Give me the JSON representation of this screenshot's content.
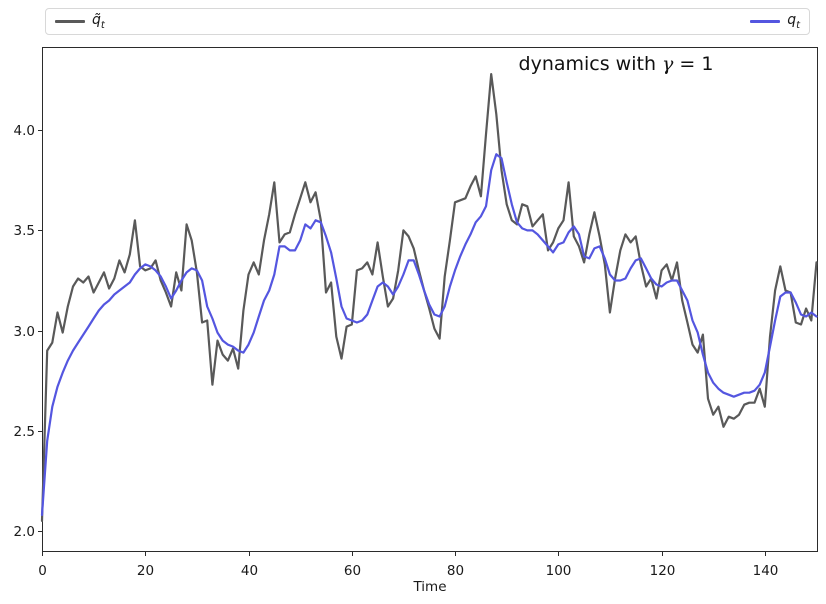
{
  "legend": {
    "entries": [
      {
        "base": "q̃",
        "sub": "t",
        "color": "#595959"
      },
      {
        "base": "q",
        "sub": "t",
        "color": "#5456e0"
      }
    ]
  },
  "annotation": {
    "prefix": "dynamics with ",
    "gamma": "γ",
    "suffix": " = 1"
  },
  "chart_data": {
    "type": "line",
    "title": "",
    "annotation_text": "dynamics with γ = 1",
    "xlabel": "Time",
    "ylabel": "",
    "grid": false,
    "legend_position": "top, expanded, outside axes, two entries",
    "xlim": [
      0,
      150.3
    ],
    "ylim": [
      1.895,
      4.415
    ],
    "x_ticks": [
      0,
      20,
      40,
      60,
      80,
      100,
      120,
      140
    ],
    "x_tick_labels": [
      "0",
      "20",
      "40",
      "60",
      "80",
      "100",
      "120",
      "140"
    ],
    "y_ticks": [
      2.0,
      2.5,
      3.0,
      3.5,
      4.0
    ],
    "y_tick_labels": [
      "2.0",
      "2.5",
      "3.0",
      "3.5",
      "4.0"
    ],
    "x_start": 0,
    "x_step": 1,
    "series": [
      {
        "name": "q̃_t",
        "color": "#595959",
        "linewidth": 2.2,
        "values": [
          2.05,
          2.9,
          2.94,
          3.09,
          2.99,
          3.12,
          3.22,
          3.26,
          3.24,
          3.27,
          3.19,
          3.24,
          3.29,
          3.21,
          3.26,
          3.35,
          3.29,
          3.38,
          3.55,
          3.32,
          3.3,
          3.31,
          3.35,
          3.25,
          3.19,
          3.12,
          3.29,
          3.2,
          3.53,
          3.45,
          3.29,
          3.04,
          3.05,
          2.73,
          2.95,
          2.88,
          2.85,
          2.91,
          2.81,
          3.1,
          3.28,
          3.34,
          3.28,
          3.45,
          3.58,
          3.74,
          3.44,
          3.48,
          3.49,
          3.58,
          3.66,
          3.74,
          3.64,
          3.69,
          3.55,
          3.19,
          3.24,
          2.97,
          2.86,
          3.02,
          3.03,
          3.3,
          3.31,
          3.34,
          3.28,
          3.44,
          3.27,
          3.12,
          3.16,
          3.3,
          3.5,
          3.47,
          3.41,
          3.3,
          3.2,
          3.11,
          3.01,
          2.96,
          3.27,
          3.45,
          3.64,
          3.65,
          3.66,
          3.72,
          3.77,
          3.67,
          3.98,
          4.28,
          4.08,
          3.8,
          3.63,
          3.55,
          3.53,
          3.63,
          3.62,
          3.52,
          3.55,
          3.58,
          3.4,
          3.44,
          3.51,
          3.55,
          3.74,
          3.47,
          3.42,
          3.34,
          3.48,
          3.59,
          3.47,
          3.33,
          3.09,
          3.26,
          3.4,
          3.48,
          3.44,
          3.47,
          3.33,
          3.22,
          3.26,
          3.16,
          3.3,
          3.33,
          3.25,
          3.34,
          3.15,
          3.04,
          2.93,
          2.89,
          2.98,
          2.66,
          2.58,
          2.62,
          2.52,
          2.57,
          2.56,
          2.58,
          2.63,
          2.64,
          2.64,
          2.71,
          2.62,
          2.97,
          3.2,
          3.32,
          3.2,
          3.19,
          3.04,
          3.03,
          3.11,
          3.05,
          3.34
        ]
      },
      {
        "name": "q_t",
        "color": "#5456e0",
        "linewidth": 2.2,
        "values": [
          2.08,
          2.45,
          2.62,
          2.72,
          2.79,
          2.85,
          2.9,
          2.94,
          2.98,
          3.02,
          3.06,
          3.1,
          3.13,
          3.15,
          3.18,
          3.2,
          3.22,
          3.24,
          3.28,
          3.31,
          3.33,
          3.32,
          3.3,
          3.27,
          3.22,
          3.16,
          3.2,
          3.25,
          3.29,
          3.31,
          3.3,
          3.25,
          3.12,
          3.06,
          2.99,
          2.95,
          2.93,
          2.92,
          2.9,
          2.89,
          2.93,
          2.99,
          3.07,
          3.15,
          3.2,
          3.28,
          3.42,
          3.42,
          3.4,
          3.4,
          3.45,
          3.53,
          3.51,
          3.55,
          3.54,
          3.47,
          3.39,
          3.26,
          3.12,
          3.06,
          3.05,
          3.04,
          3.05,
          3.08,
          3.15,
          3.22,
          3.24,
          3.22,
          3.18,
          3.22,
          3.28,
          3.35,
          3.35,
          3.28,
          3.2,
          3.13,
          3.08,
          3.07,
          3.12,
          3.22,
          3.3,
          3.37,
          3.43,
          3.48,
          3.54,
          3.57,
          3.62,
          3.8,
          3.88,
          3.86,
          3.74,
          3.63,
          3.54,
          3.51,
          3.5,
          3.5,
          3.48,
          3.45,
          3.42,
          3.39,
          3.43,
          3.44,
          3.49,
          3.52,
          3.48,
          3.37,
          3.36,
          3.41,
          3.42,
          3.36,
          3.28,
          3.25,
          3.25,
          3.26,
          3.31,
          3.35,
          3.36,
          3.31,
          3.26,
          3.23,
          3.22,
          3.24,
          3.25,
          3.25,
          3.2,
          3.15,
          3.05,
          2.99,
          2.88,
          2.79,
          2.74,
          2.71,
          2.69,
          2.68,
          2.67,
          2.68,
          2.69,
          2.69,
          2.7,
          2.73,
          2.79,
          2.92,
          3.05,
          3.17,
          3.19,
          3.19,
          3.14,
          3.08,
          3.07,
          3.09,
          3.07
        ]
      }
    ]
  }
}
